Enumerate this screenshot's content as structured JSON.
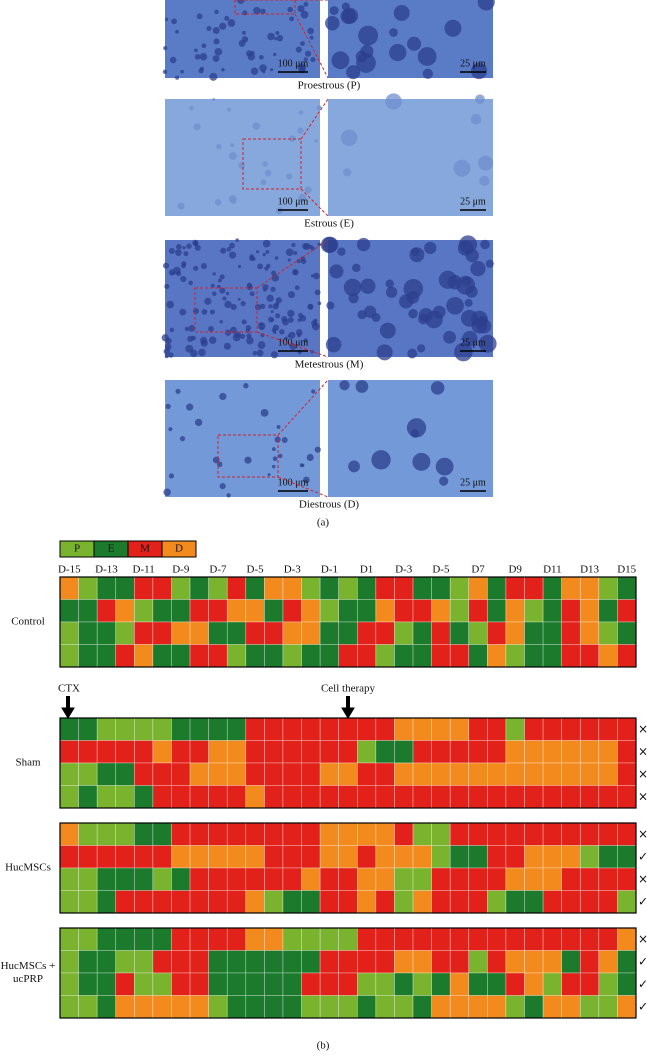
{
  "panel_a": {
    "images": [
      {
        "caption": "Proestrous (P)",
        "scale_left": "100 μm",
        "scale_right": "25 μm"
      },
      {
        "caption": "Estrous (E)",
        "scale_left": "100 μm",
        "scale_right": "25 μm"
      },
      {
        "caption": "Metestrous (M)",
        "scale_left": "100 μm",
        "scale_right": "25 μm"
      },
      {
        "caption": "Diestrous (D)",
        "scale_left": "100 μm",
        "scale_right": "25 μm"
      }
    ],
    "label": "(a)"
  },
  "panel_b": {
    "legend": [
      {
        "label": "P",
        "color": "#7ab32e"
      },
      {
        "label": "E",
        "color": "#1b7a2c"
      },
      {
        "label": "M",
        "color": "#e3211b"
      },
      {
        "label": "D",
        "color": "#f28a1e"
      }
    ],
    "days": [
      "D-15",
      "D-13",
      "D-11",
      "D-9",
      "D-7",
      "D-5",
      "D-3",
      "D-1",
      "D1",
      "D-3",
      "D-5",
      "D7",
      "D9",
      "D11",
      "D13",
      "D15"
    ],
    "annotations": [
      "CTX",
      "Cell therapy"
    ],
    "groups": [
      {
        "name": [
          "Control"
        ],
        "outcomes": [],
        "rows": [
          [
            "D",
            "P",
            "E",
            "E",
            "M",
            "M",
            "P",
            "E",
            "P",
            "M",
            "E",
            "D",
            "D",
            "P",
            "E",
            "P",
            "E",
            "M",
            "M",
            "E",
            "E",
            "P",
            "D",
            "E",
            "M",
            "M",
            "E",
            "D",
            "D",
            "P",
            "E"
          ],
          [
            "E",
            "E",
            "M",
            "D",
            "P",
            "E",
            "E",
            "M",
            "M",
            "D",
            "D",
            "E",
            "M",
            "D",
            "P",
            "E",
            "E",
            "D",
            "M",
            "M",
            "D",
            "P",
            "M",
            "E",
            "D",
            "P",
            "E",
            "M",
            "D",
            "E",
            "M"
          ],
          [
            "P",
            "E",
            "E",
            "P",
            "M",
            "M",
            "D",
            "D",
            "E",
            "E",
            "M",
            "M",
            "D",
            "D",
            "E",
            "E",
            "M",
            "M",
            "P",
            "E",
            "M",
            "E",
            "P",
            "M",
            "D",
            "E",
            "E",
            "M",
            "D",
            "P",
            "E"
          ],
          [
            "P",
            "E",
            "E",
            "M",
            "D",
            "E",
            "E",
            "M",
            "M",
            "P",
            "E",
            "E",
            "P",
            "E",
            "E",
            "M",
            "M",
            "P",
            "E",
            "E",
            "M",
            "M",
            "E",
            "D",
            "P",
            "E",
            "E",
            "M",
            "M",
            "D",
            "M"
          ]
        ]
      },
      {
        "name": [
          "Sham"
        ],
        "outcomes": [
          {
            "symbol": "×",
            "color": "#e0453a"
          },
          {
            "symbol": "×",
            "color": "#e0453a"
          },
          {
            "symbol": "×",
            "color": "#e0453a"
          },
          {
            "symbol": "×",
            "color": "#e0453a"
          }
        ],
        "rows": [
          [
            "E",
            "E",
            "P",
            "P",
            "P",
            "P",
            "E",
            "E",
            "E",
            "E",
            "M",
            "M",
            "M",
            "M",
            "M",
            "M",
            "M",
            "M",
            "D",
            "D",
            "D",
            "D",
            "M",
            "M",
            "P",
            "M",
            "M",
            "M",
            "M",
            "M",
            "M"
          ],
          [
            "M",
            "M",
            "M",
            "M",
            "M",
            "D",
            "M",
            "M",
            "D",
            "D",
            "M",
            "M",
            "M",
            "M",
            "M",
            "M",
            "P",
            "E",
            "E",
            "M",
            "M",
            "M",
            "M",
            "M",
            "D",
            "D",
            "D",
            "D",
            "D",
            "D",
            "M"
          ],
          [
            "P",
            "P",
            "E",
            "E",
            "M",
            "M",
            "M",
            "D",
            "D",
            "D",
            "M",
            "M",
            "M",
            "M",
            "D",
            "D",
            "M",
            "M",
            "D",
            "D",
            "D",
            "D",
            "D",
            "D",
            "D",
            "D",
            "D",
            "D",
            "D",
            "D",
            "M"
          ],
          [
            "P",
            "E",
            "P",
            "P",
            "E",
            "M",
            "M",
            "M",
            "M",
            "M",
            "D",
            "M",
            "M",
            "M",
            "M",
            "M",
            "M",
            "M",
            "M",
            "M",
            "M",
            "M",
            "M",
            "M",
            "M",
            "M",
            "M",
            "M",
            "M",
            "M",
            "M"
          ]
        ]
      },
      {
        "name": [
          "HucMSCs"
        ],
        "outcomes": [
          {
            "symbol": "×",
            "color": "#e0453a"
          },
          {
            "symbol": "✓",
            "color": "#3f9a2e"
          },
          {
            "symbol": "×",
            "color": "#e0453a"
          },
          {
            "symbol": "✓",
            "color": "#3f9a2e"
          }
        ],
        "rows": [
          [
            "D",
            "P",
            "P",
            "P",
            "E",
            "E",
            "M",
            "M",
            "M",
            "M",
            "M",
            "M",
            "M",
            "M",
            "D",
            "D",
            "D",
            "D",
            "M",
            "P",
            "P",
            "M",
            "M",
            "M",
            "M",
            "M",
            "M",
            "M",
            "M",
            "M",
            "M"
          ],
          [
            "M",
            "M",
            "M",
            "M",
            "M",
            "M",
            "D",
            "D",
            "D",
            "D",
            "D",
            "M",
            "M",
            "M",
            "D",
            "D",
            "M",
            "D",
            "D",
            "D",
            "P",
            "E",
            "E",
            "M",
            "M",
            "D",
            "D",
            "D",
            "P",
            "E",
            "E"
          ],
          [
            "P",
            "P",
            "E",
            "E",
            "E",
            "P",
            "E",
            "M",
            "M",
            "M",
            "M",
            "M",
            "M",
            "D",
            "M",
            "M",
            "D",
            "D",
            "P",
            "P",
            "M",
            "M",
            "M",
            "M",
            "D",
            "D",
            "D",
            "M",
            "M",
            "M",
            "M"
          ],
          [
            "P",
            "P",
            "E",
            "M",
            "M",
            "M",
            "M",
            "M",
            "M",
            "M",
            "D",
            "P",
            "E",
            "E",
            "M",
            "M",
            "D",
            "M",
            "P",
            "D",
            "M",
            "M",
            "M",
            "P",
            "E",
            "E",
            "M",
            "M",
            "M",
            "M",
            "P"
          ]
        ]
      },
      {
        "name": [
          "HucMSCs +",
          "ucPRP"
        ],
        "outcomes": [
          {
            "symbol": "×",
            "color": "#e0453a"
          },
          {
            "symbol": "✓",
            "color": "#3f9a2e"
          },
          {
            "symbol": "✓",
            "color": "#3f9a2e"
          },
          {
            "symbol": "✓",
            "color": "#3f9a2e"
          }
        ],
        "rows": [
          [
            "P",
            "P",
            "E",
            "E",
            "E",
            "E",
            "M",
            "M",
            "M",
            "M",
            "D",
            "D",
            "P",
            "P",
            "P",
            "P",
            "M",
            "M",
            "M",
            "M",
            "M",
            "M",
            "M",
            "M",
            "M",
            "M",
            "M",
            "M",
            "M",
            "M",
            "D"
          ],
          [
            "P",
            "E",
            "E",
            "P",
            "P",
            "M",
            "M",
            "M",
            "E",
            "E",
            "E",
            "E",
            "E",
            "E",
            "M",
            "M",
            "M",
            "M",
            "D",
            "D",
            "M",
            "M",
            "P",
            "M",
            "D",
            "D",
            "D",
            "E",
            "M",
            "D",
            "E"
          ],
          [
            "P",
            "E",
            "E",
            "M",
            "P",
            "P",
            "M",
            "M",
            "E",
            "E",
            "E",
            "E",
            "E",
            "M",
            "M",
            "M",
            "P",
            "P",
            "E",
            "P",
            "E",
            "D",
            "E",
            "E",
            "M",
            "D",
            "P",
            "M",
            "M",
            "P",
            "E"
          ],
          [
            "P",
            "P",
            "E",
            "D",
            "D",
            "D",
            "D",
            "D",
            "P",
            "E",
            "E",
            "E",
            "E",
            "P",
            "P",
            "P",
            "E",
            "P",
            "P",
            "E",
            "D",
            "D",
            "D",
            "D",
            "P",
            "E",
            "D",
            "D",
            "P",
            "P",
            "D"
          ]
        ]
      }
    ],
    "label": "(b)"
  }
}
